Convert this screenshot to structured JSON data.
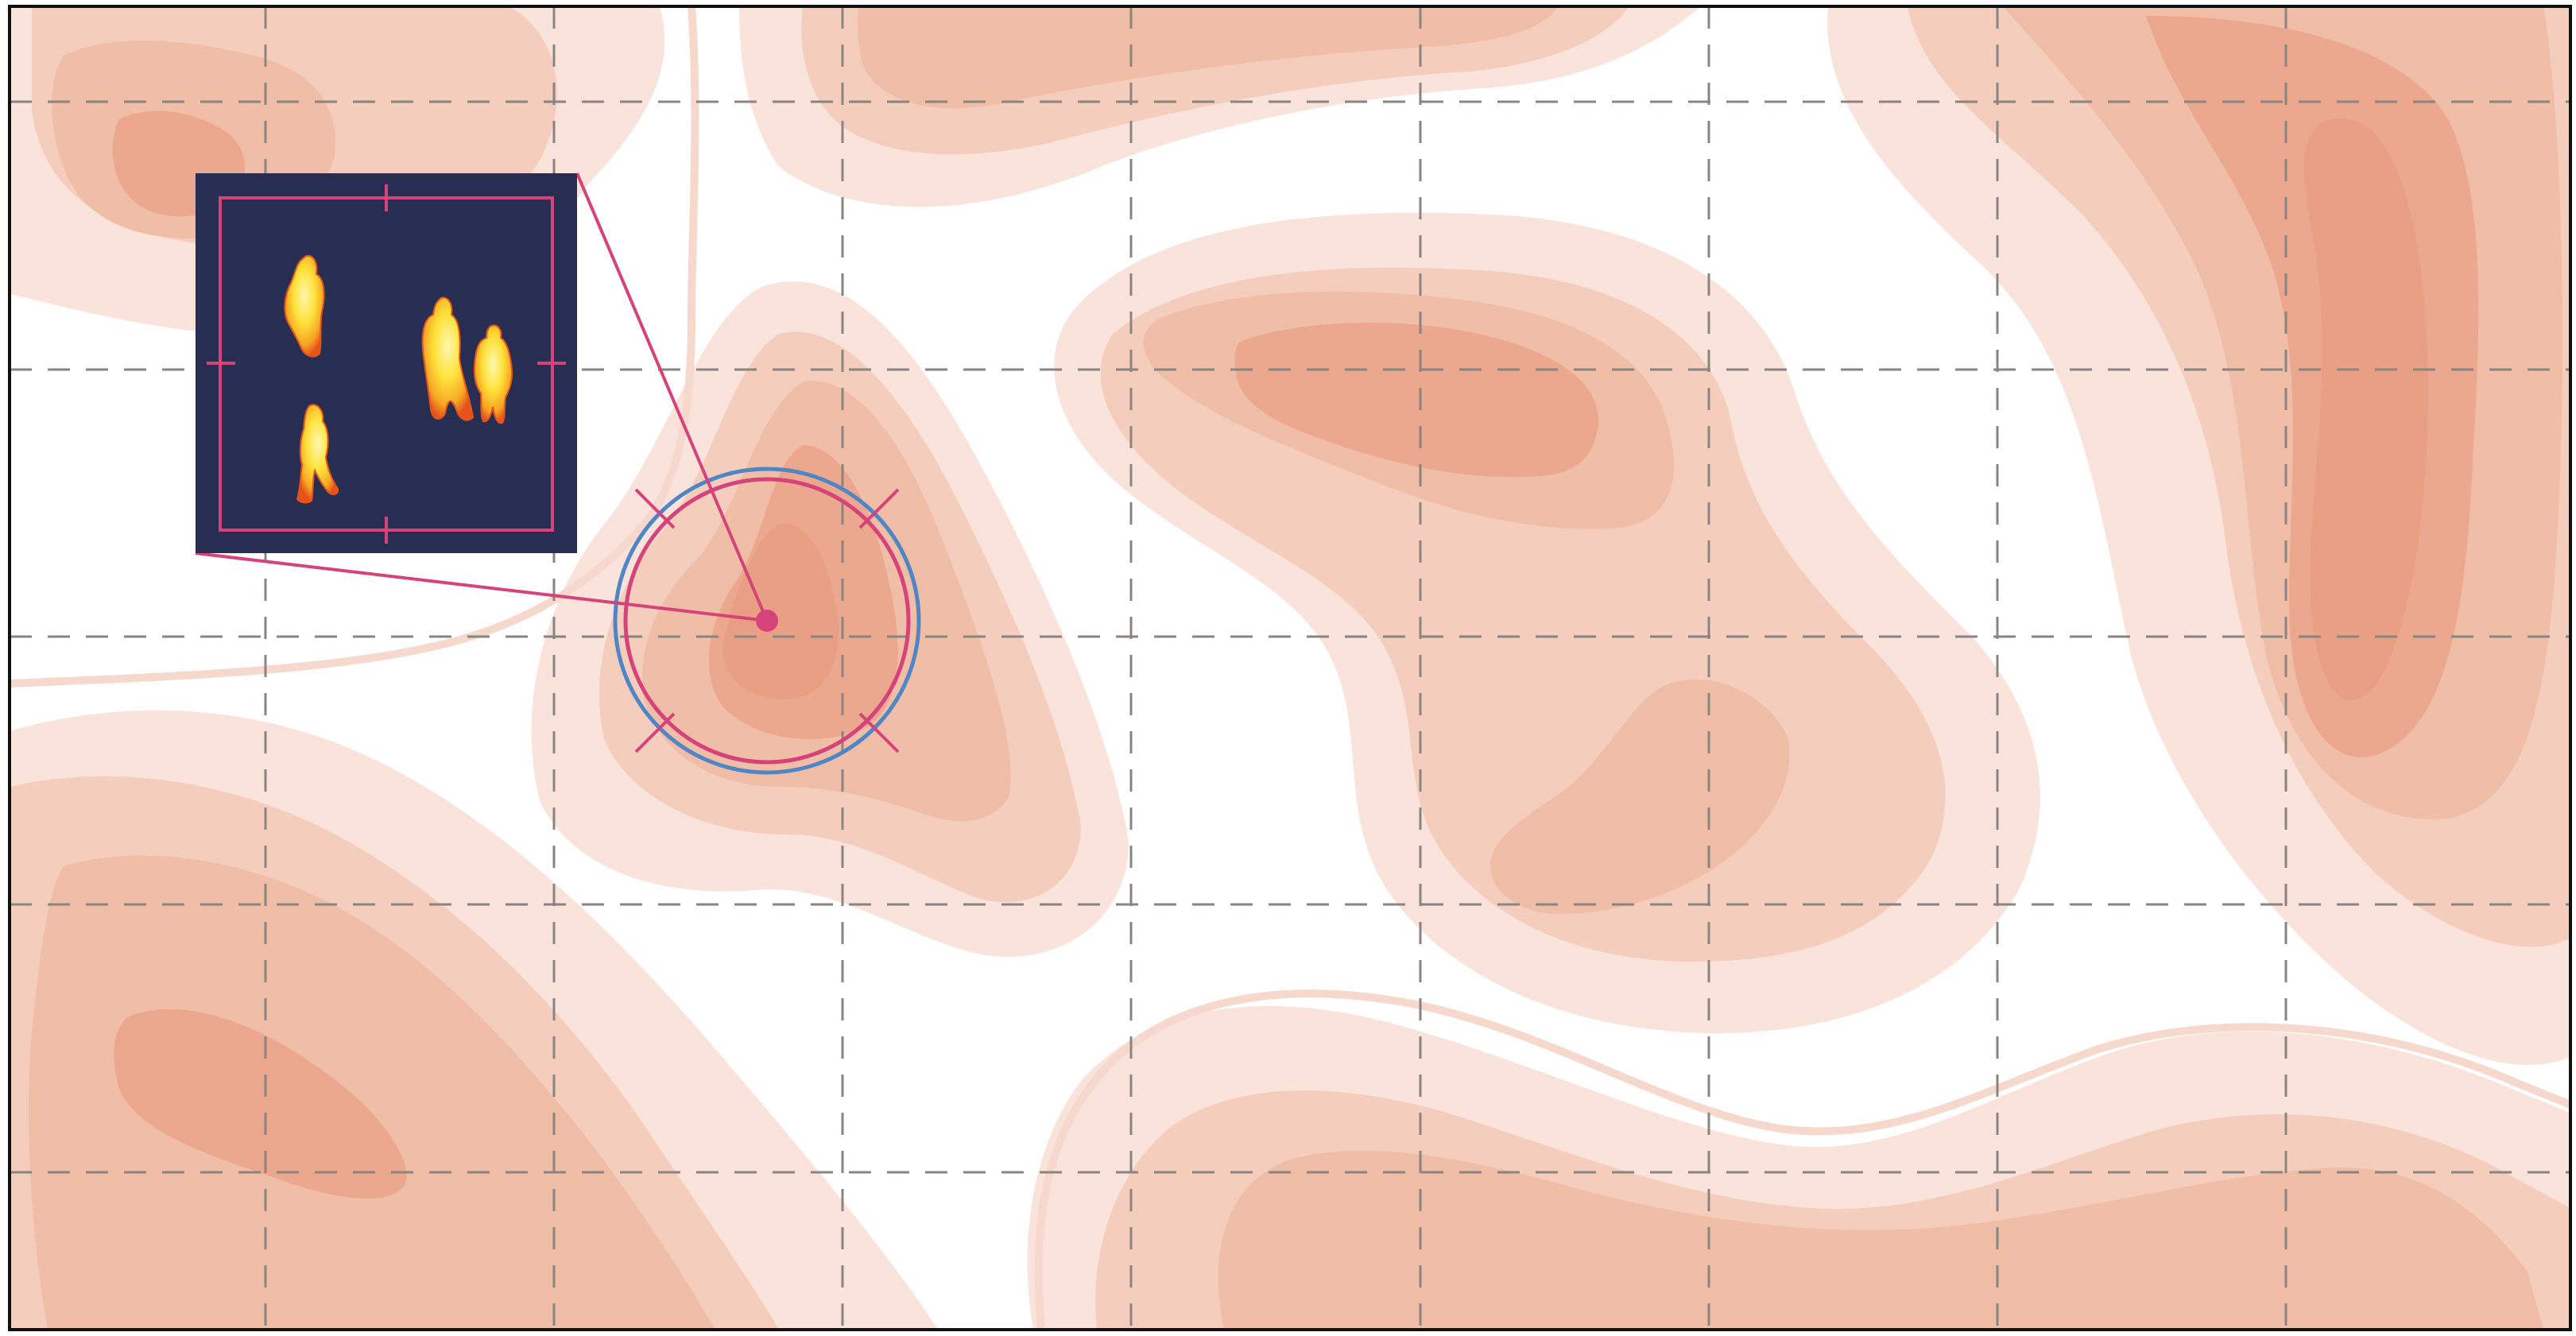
{
  "figure": {
    "description_type": "thermal-detection-overlay",
    "colors": {
      "background": "#ffffff",
      "frame": "#111111",
      "grid": "#8a8580",
      "heat_light": "#f7ded4",
      "heat_mid": "#f2c2ad",
      "heat_dark": "#eca88e",
      "contour_line": "#f6d8cc",
      "target_magenta": "#d6427a",
      "target_blue": "#4f86c6",
      "inset_bg": "#272e52",
      "inset_frame": "#d6427a",
      "thermal_hot": "#ffe13a",
      "thermal_warm": "#f5a623",
      "thermal_edge": "#e5531a"
    },
    "icons": {
      "target": "crosshair-target-icon",
      "person": "thermal-person-silhouette-icon"
    },
    "inset": {
      "detected_people_count": 4
    },
    "grid": {
      "columns": 9,
      "rows": 5
    }
  }
}
